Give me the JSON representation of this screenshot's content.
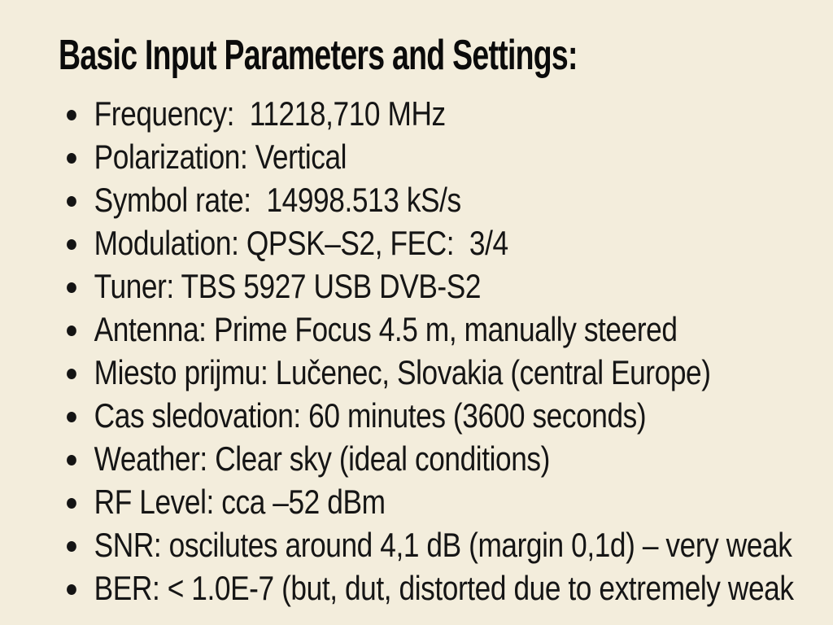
{
  "title": "Basic Input Parameters and Settings:",
  "list": {
    "items": [
      "Frequency:  11218,710 MHz",
      "Polarization: Vertical",
      "Symbol rate:  14998.513 kS/s",
      "Modulation: QPSK–S2, FEC:  3/4",
      "Tuner: TBS 5927 USB DVB-S2",
      "Antenna: Prime Focus 4.5 m, manually steered",
      "Miesto prijmu: Lučenec, Slovakia (central Europe)",
      "Cas sledovation: 60 minutes (3600 seconds)",
      "Weather: Clear sky (ideal conditions)",
      "RF Level: cca –52 dBm",
      "SNR: oscilutes around 4,1 dB (margin 0,1d) – very weak",
      "BER: < 1.0E-7 (but, dut, distorted due to extremely weak"
    ]
  },
  "colors": {
    "background": "#f3eddc",
    "text": "#151515"
  }
}
